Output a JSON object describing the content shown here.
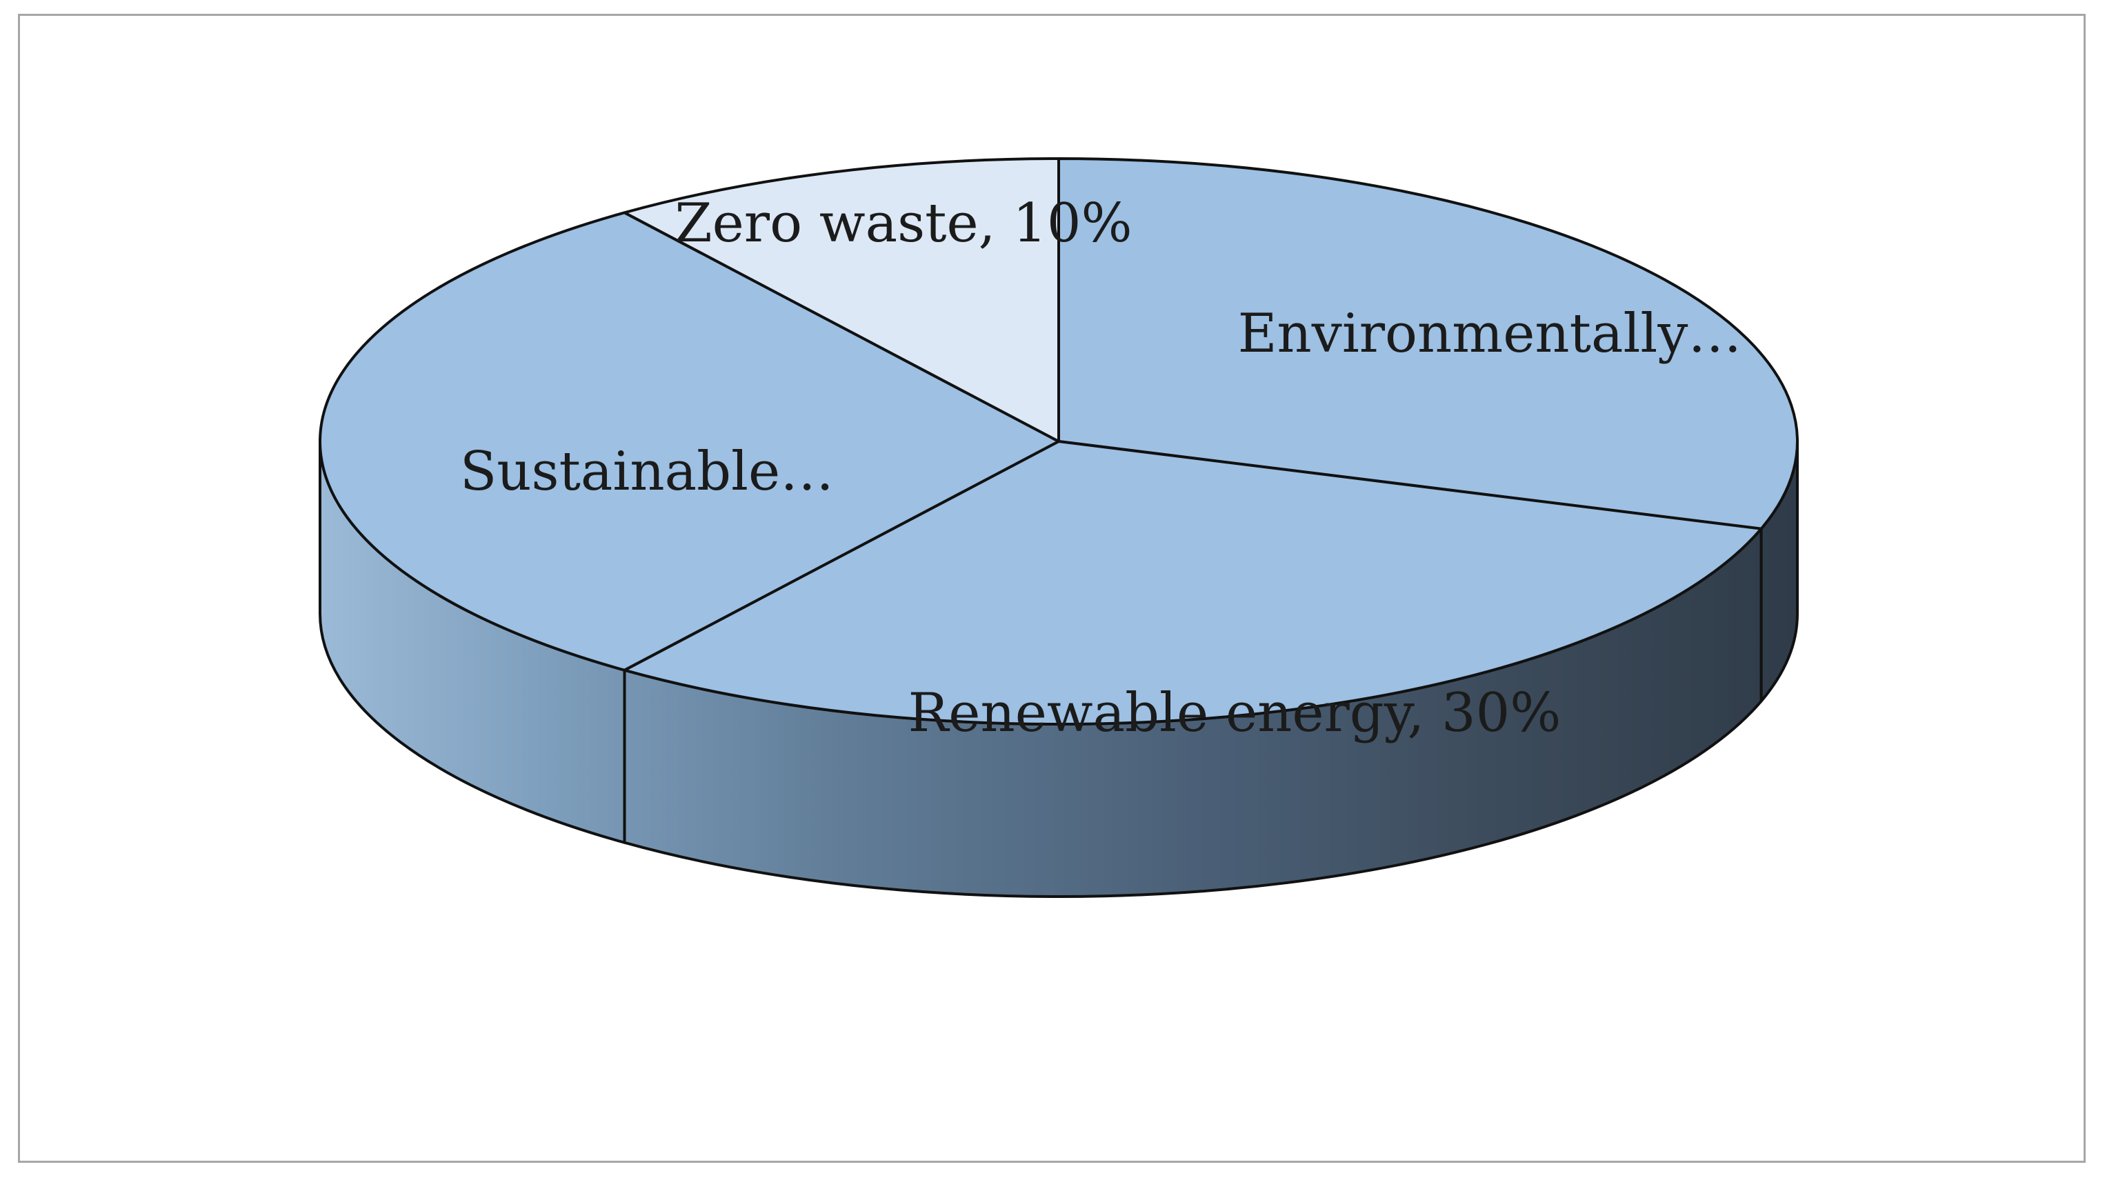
{
  "chart_data": {
    "type": "pie",
    "style": "3d",
    "title": "",
    "slices": [
      {
        "label": "Environmentally…",
        "value": 30,
        "color": "#9dc0e3"
      },
      {
        "label": "Renewable energy, 30%",
        "value": 30,
        "color": "#9dc0e3"
      },
      {
        "label": "Sustainable…",
        "value": 30,
        "color": "#9dc0e3"
      },
      {
        "label": "Zero waste, 10%",
        "value": 10,
        "color": "#dce8f6"
      }
    ],
    "start_angle_deg": 90,
    "direction": "clockwise"
  }
}
